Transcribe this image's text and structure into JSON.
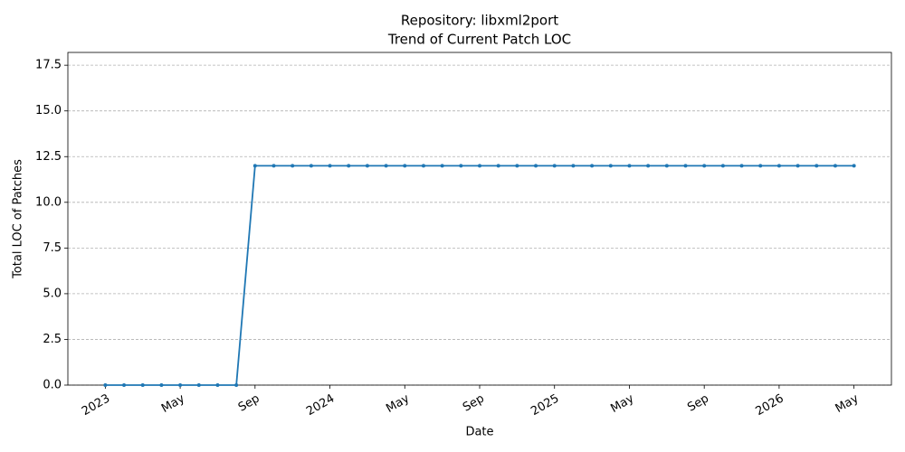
{
  "chart_data": {
    "type": "line",
    "title": [
      "Repository: libxml2port",
      "Trend of Current Patch LOC"
    ],
    "xlabel": "Date",
    "ylabel": "Total LOC of Patches",
    "x": [
      "2023-01",
      "2023-02",
      "2023-03",
      "2023-04",
      "2023-05",
      "2023-06",
      "2023-07",
      "2023-08",
      "2023-09",
      "2023-10",
      "2023-11",
      "2023-12",
      "2024-01",
      "2024-02",
      "2024-03",
      "2024-04",
      "2024-05",
      "2024-06",
      "2024-07",
      "2024-08",
      "2024-09",
      "2024-10",
      "2024-11",
      "2024-12",
      "2025-01",
      "2025-02",
      "2025-03",
      "2025-04",
      "2025-05",
      "2025-06",
      "2025-07",
      "2025-08",
      "2025-09",
      "2025-10",
      "2025-11",
      "2025-12",
      "2026-01",
      "2026-02",
      "2026-03",
      "2026-04",
      "2026-05"
    ],
    "values": [
      0,
      0,
      0,
      0,
      0,
      0,
      0,
      0,
      12,
      12,
      12,
      12,
      12,
      12,
      12,
      12,
      12,
      12,
      12,
      12,
      12,
      12,
      12,
      12,
      12,
      12,
      12,
      12,
      12,
      12,
      12,
      12,
      12,
      12,
      12,
      12,
      12,
      12,
      12,
      12,
      12
    ],
    "color": "#1f77b4",
    "xlim": [
      "2022-11",
      "2026-07"
    ],
    "xticks": [
      {
        "value": "2023-01",
        "label": "2023"
      },
      {
        "value": "2023-05",
        "label": "May"
      },
      {
        "value": "2023-09",
        "label": "Sep"
      },
      {
        "value": "2024-01",
        "label": "2024"
      },
      {
        "value": "2024-05",
        "label": "May"
      },
      {
        "value": "2024-09",
        "label": "Sep"
      },
      {
        "value": "2025-01",
        "label": "2025"
      },
      {
        "value": "2025-05",
        "label": "May"
      },
      {
        "value": "2025-09",
        "label": "Sep"
      },
      {
        "value": "2026-01",
        "label": "2026"
      },
      {
        "value": "2026-05",
        "label": "May"
      }
    ],
    "ylim": [
      0,
      18.2
    ],
    "yticks": [
      {
        "value": 0,
        "label": "0.0"
      },
      2.5,
      {
        "value": 5,
        "label": "5.0"
      },
      7.5,
      {
        "value": 10,
        "label": "10.0"
      },
      12.5,
      {
        "value": 15,
        "label": "15.0"
      },
      17.5
    ],
    "grid": true
  }
}
